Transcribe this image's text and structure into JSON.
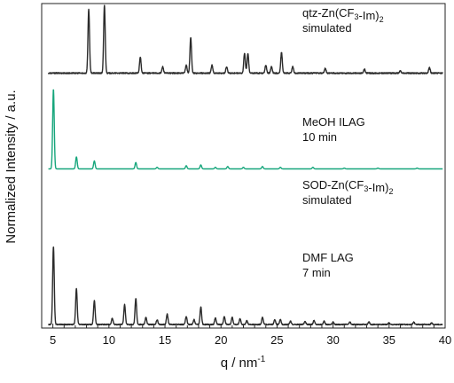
{
  "chart_data": {
    "type": "line",
    "title": "",
    "xlabel": "q / nm",
    "xlabel_superscript": "-1",
    "ylabel": "Normalized Intensity / a.u.",
    "xlim": [
      4,
      40
    ],
    "x_ticks": [
      "5",
      "10",
      "15",
      "20",
      "25",
      "30",
      "35",
      "40"
    ],
    "grid": false,
    "legend": "none",
    "series": [
      {
        "name": "qtz-Zn(CF3-Im)2 simulated",
        "label_lines": [
          [
            {
              "t": "qtz-Zn(CF"
            },
            {
              "t": "3",
              "sub": true
            },
            {
              "t": "-Im)"
            },
            {
              "t": "2",
              "sub": true
            }
          ],
          [
            {
              "t": "simulated"
            }
          ]
        ],
        "color": "#e0282b",
        "baseline": 4.42,
        "peaks": [
          [
            8.2,
            1.0
          ],
          [
            9.6,
            0.99
          ],
          [
            12.8,
            0.24
          ],
          [
            14.8,
            0.05
          ],
          [
            16.9,
            0.08
          ],
          [
            17.3,
            0.43
          ],
          [
            19.2,
            0.09
          ],
          [
            20.5,
            0.07
          ],
          [
            22.0,
            0.3
          ],
          [
            22.3,
            0.26
          ],
          [
            24.0,
            0.06
          ],
          [
            24.6,
            0.05
          ],
          [
            25.6,
            0.05
          ],
          [
            26.4,
            0.12
          ],
          [
            28.5,
            0.04
          ],
          [
            29.3,
            0.1
          ],
          [
            31.5,
            0.06
          ],
          [
            32.8,
            0.06
          ],
          [
            34.5,
            0.03
          ],
          [
            36.0,
            0.03
          ],
          [
            37.5,
            0.03
          ],
          [
            38.8,
            0.05
          ]
        ],
        "noise": 0.0
      },
      {
        "name": "MeOH ILAG 10 min",
        "label_lines": [
          [
            {
              "t": "MeOH ILAG"
            }
          ],
          [
            {
              "t": "10 min"
            }
          ]
        ],
        "color": "#2b2b2b",
        "baseline": 3.15,
        "peaks": [
          [
            8.2,
            0.8
          ],
          [
            9.6,
            0.85
          ],
          [
            12.8,
            0.2
          ],
          [
            14.8,
            0.08
          ],
          [
            16.9,
            0.1
          ],
          [
            17.3,
            0.45
          ],
          [
            19.2,
            0.1
          ],
          [
            20.5,
            0.08
          ],
          [
            22.1,
            0.25
          ],
          [
            22.4,
            0.25
          ],
          [
            24.0,
            0.1
          ],
          [
            24.5,
            0.08
          ],
          [
            25.4,
            0.26
          ],
          [
            26.4,
            0.08
          ],
          [
            29.3,
            0.06
          ],
          [
            32.8,
            0.05
          ],
          [
            36.0,
            0.03
          ],
          [
            38.6,
            0.07
          ]
        ],
        "noise": 0.015
      },
      {
        "name": "SOD-Zn(CF3-Im)2 simulated",
        "label_lines": [
          [
            {
              "t": "SOD-Zn(CF"
            },
            {
              "t": "3",
              "sub": true
            },
            {
              "t": "-Im)"
            },
            {
              "t": "2",
              "sub": true
            }
          ],
          [
            {
              "t": "simulated"
            }
          ]
        ],
        "color": "#17a67c",
        "baseline": 1.95,
        "peaks": [
          [
            5.05,
            1.0
          ],
          [
            7.1,
            0.15
          ],
          [
            8.7,
            0.1
          ],
          [
            12.4,
            0.08
          ],
          [
            14.3,
            0.02
          ],
          [
            16.9,
            0.04
          ],
          [
            18.2,
            0.05
          ],
          [
            19.5,
            0.02
          ],
          [
            20.6,
            0.03
          ],
          [
            22.0,
            0.02
          ],
          [
            23.7,
            0.03
          ],
          [
            25.3,
            0.02
          ],
          [
            28.2,
            0.02
          ],
          [
            31.0,
            0.01
          ],
          [
            34.0,
            0.01
          ],
          [
            37.5,
            0.01
          ]
        ],
        "noise": 0.0
      },
      {
        "name": "DMF LAG 7 min",
        "label_lines": [
          [
            {
              "t": "DMF LAG"
            }
          ],
          [
            {
              "t": "7 min"
            }
          ]
        ],
        "color": "#2b2b2b",
        "baseline": 0.0,
        "peaks": [
          [
            5.05,
            0.98
          ],
          [
            7.1,
            0.45
          ],
          [
            8.7,
            0.3
          ],
          [
            10.3,
            0.08
          ],
          [
            11.4,
            0.25
          ],
          [
            12.4,
            0.33
          ],
          [
            13.3,
            0.09
          ],
          [
            14.3,
            0.06
          ],
          [
            15.2,
            0.13
          ],
          [
            16.9,
            0.1
          ],
          [
            17.6,
            0.06
          ],
          [
            18.2,
            0.22
          ],
          [
            19.5,
            0.08
          ],
          [
            20.3,
            0.1
          ],
          [
            21.0,
            0.09
          ],
          [
            21.7,
            0.07
          ],
          [
            22.3,
            0.05
          ],
          [
            23.7,
            0.09
          ],
          [
            24.8,
            0.06
          ],
          [
            25.3,
            0.06
          ],
          [
            26.2,
            0.04
          ],
          [
            27.5,
            0.04
          ],
          [
            28.3,
            0.05
          ],
          [
            29.2,
            0.04
          ],
          [
            30.0,
            0.03
          ],
          [
            31.5,
            0.03
          ],
          [
            33.2,
            0.03
          ],
          [
            35.0,
            0.02
          ],
          [
            37.2,
            0.03
          ],
          [
            38.8,
            0.02
          ]
        ],
        "noise": 0.012
      }
    ]
  }
}
